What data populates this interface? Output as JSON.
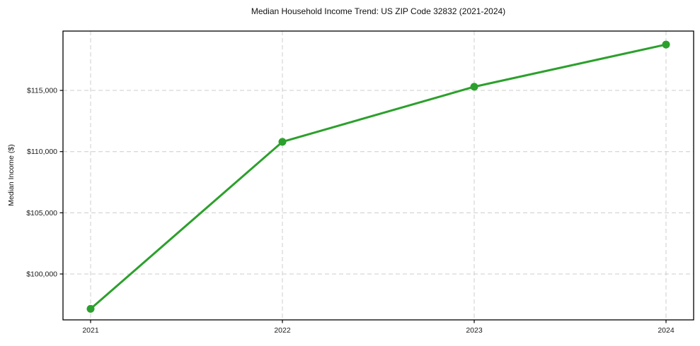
{
  "chart_data": {
    "type": "line",
    "title": "Median Household Income Trend: US ZIP Code 32832 (2021-2024)",
    "xlabel": "",
    "ylabel": "Median Income ($)",
    "categories": [
      "2021",
      "2022",
      "2023",
      "2024"
    ],
    "series": [
      {
        "name": "Median Household Income",
        "values": [
          97150,
          110800,
          115300,
          118750
        ]
      }
    ],
    "xtick_labels": [
      "2021",
      "2022",
      "2023",
      "2024"
    ],
    "yticks": [
      100000,
      105000,
      110000,
      115000
    ],
    "ytick_labels": [
      "$100,000",
      "$105,000",
      "$110,000",
      "$115,000"
    ],
    "ylim": [
      96250,
      119850
    ],
    "grid": true,
    "grid_style": "dashed",
    "legend_position": "none",
    "colors": {
      "line": "#2ca02c",
      "marker": "#2ca02c",
      "grid": "#cccccc",
      "axis_border": "#000000",
      "background": "#ffffff",
      "text": "#111111"
    }
  }
}
